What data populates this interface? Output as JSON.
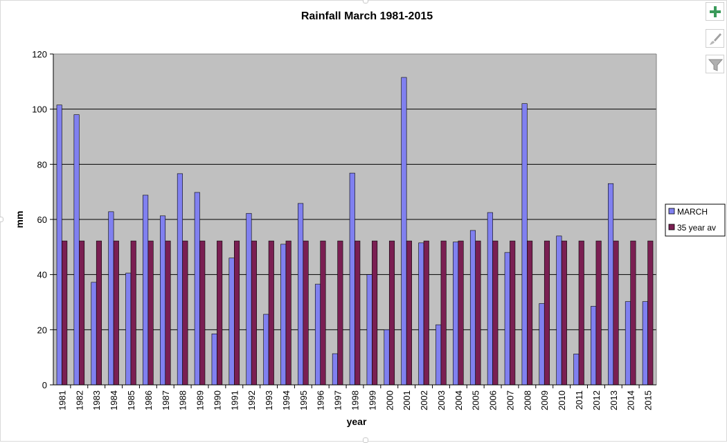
{
  "chart_data": {
    "type": "bar",
    "title": "Rainfall March 1981-2015",
    "xlabel": "year",
    "ylabel": "mm",
    "ylim": [
      0,
      120
    ],
    "yticks": [
      0,
      20,
      40,
      60,
      80,
      100,
      120
    ],
    "grid": true,
    "legend_position": "right",
    "categories": [
      "1981",
      "1982",
      "1983",
      "1984",
      "1985",
      "1986",
      "1987",
      "1988",
      "1989",
      "1990",
      "1991",
      "1992",
      "1993",
      "1994",
      "1995",
      "1996",
      "1997",
      "1998",
      "1999",
      "2000",
      "2001",
      "2002",
      "2003",
      "2004",
      "2005",
      "2006",
      "2007",
      "2008",
      "2009",
      "2010",
      "2011",
      "2012",
      "2013",
      "2014",
      "2015"
    ],
    "series": [
      {
        "name": "MARCH",
        "color": "#8080f0",
        "values": [
          101.5,
          98,
          37.2,
          62.8,
          40.5,
          68.8,
          61.3,
          76.6,
          69.8,
          18.5,
          46,
          62.2,
          25.6,
          51,
          65.8,
          36.5,
          11.3,
          76.8,
          40,
          20,
          111.5,
          51.5,
          21.8,
          51.8,
          56,
          62.5,
          48,
          102,
          29.5,
          54,
          11.2,
          28.5,
          73,
          30.2,
          30.2
        ]
      },
      {
        "name": "35 year av",
        "color": "#7a1f52",
        "values": [
          52.2,
          52.2,
          52.2,
          52.2,
          52.2,
          52.2,
          52.2,
          52.2,
          52.2,
          52.2,
          52.2,
          52.2,
          52.2,
          52.2,
          52.2,
          52.2,
          52.2,
          52.2,
          52.2,
          52.2,
          52.2,
          52.2,
          52.2,
          52.2,
          52.2,
          52.2,
          52.2,
          52.2,
          52.2,
          52.2,
          52.2,
          52.2,
          52.2,
          52.2,
          52.2
        ]
      }
    ],
    "plot_background": "#c0c0c0"
  },
  "side_buttons": [
    {
      "icon": "plus-icon",
      "color": "#3a9a5a"
    },
    {
      "icon": "brush-icon",
      "color": "#9a9a9a"
    },
    {
      "icon": "filter-icon",
      "color": "#9a9a9a"
    }
  ]
}
